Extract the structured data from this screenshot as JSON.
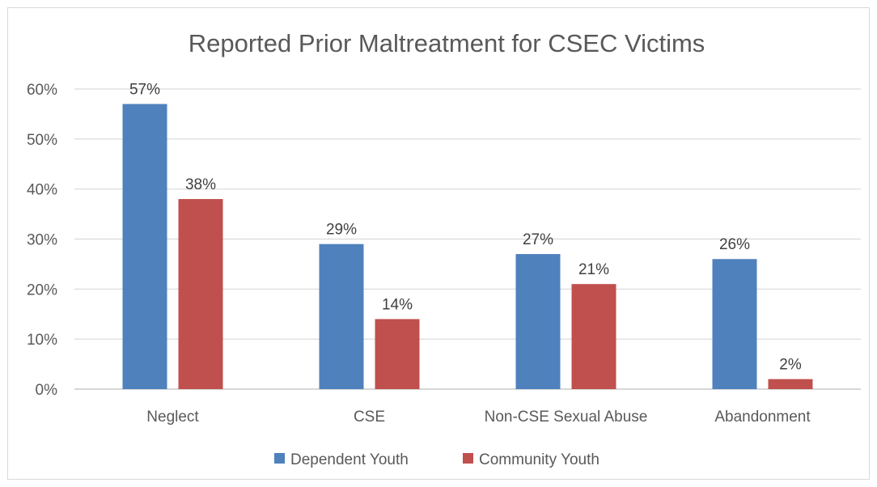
{
  "chart_data": {
    "type": "bar",
    "title": "Reported Prior Maltreatment for CSEC Victims",
    "categories": [
      "Neglect",
      "CSE",
      "Non-CSE Sexual Abuse",
      "Abandonment"
    ],
    "series": [
      {
        "name": "Dependent Youth",
        "values": [
          57,
          29,
          27,
          26
        ],
        "labels": [
          "57%",
          "29%",
          "27%",
          "26%"
        ],
        "color": "#4f81bd"
      },
      {
        "name": "Community Youth",
        "values": [
          38,
          14,
          21,
          2
        ],
        "labels": [
          "38%",
          "14%",
          "21%",
          "2%"
        ],
        "color": "#c0504d"
      }
    ],
    "yticks": [
      0,
      10,
      20,
      30,
      40,
      50,
      60
    ],
    "ytick_labels": [
      "0%",
      "10%",
      "20%",
      "30%",
      "40%",
      "50%",
      "60%"
    ],
    "ylim": [
      0,
      60
    ],
    "grid": true,
    "legend_position": "bottom"
  }
}
